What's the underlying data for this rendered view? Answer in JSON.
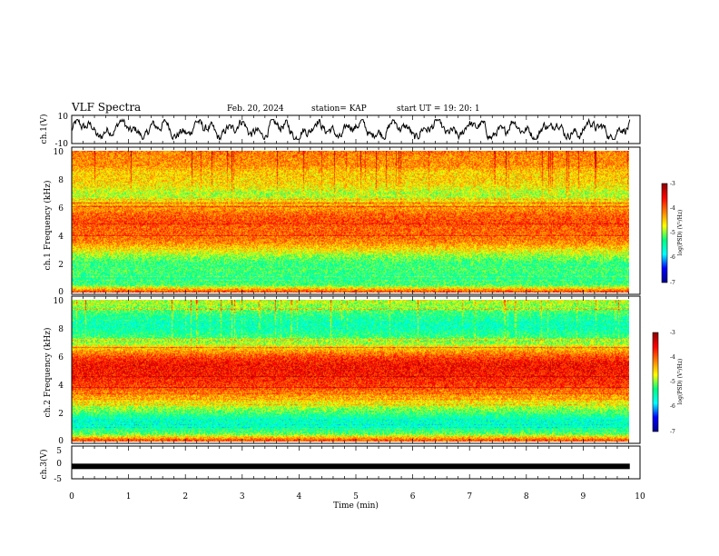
{
  "header": {
    "title": "VLF Spectra",
    "date": "Feb. 20, 2024",
    "station": "station= KAP",
    "start": "start UT =   19: 20: 1"
  },
  "colors": {
    "colormap": [
      "#00008b",
      "#0000ff",
      "#00ffff",
      "#00ff7f",
      "#ffff00",
      "#ff7f00",
      "#ff0000",
      "#8b0000"
    ],
    "trace": "#000000"
  },
  "chart_data": [
    {
      "type": "line",
      "ylabel": "ch.1(V)",
      "ylim": [
        -10,
        10
      ],
      "ytick_labels": [
        "-10",
        "10"
      ],
      "xlim": [
        0,
        10
      ],
      "x_data_extent": [
        0,
        9.82
      ],
      "description_of_series": "noisy waveform roughly between -6 and 6 V"
    },
    {
      "type": "heatmap",
      "ylabel": "ch.1 Frequency (kHz)",
      "ylim": [
        0,
        10
      ],
      "ytick_labels": [
        "0",
        "2",
        "4",
        "6",
        "8",
        "10"
      ],
      "colorbar": {
        "label": "log(PSD) (V²/Hz)",
        "range": [
          -7,
          -3
        ],
        "tick_labels": [
          "-3",
          "-4",
          "-5",
          "-6",
          "-7"
        ]
      },
      "frequency_profile": [
        [
          0.0,
          -3.8
        ],
        [
          0.3,
          -4.6
        ],
        [
          0.5,
          -5.2
        ],
        [
          1.0,
          -5.4
        ],
        [
          1.5,
          -5.2
        ],
        [
          2.0,
          -5.3
        ],
        [
          2.5,
          -5.0
        ],
        [
          3.0,
          -4.6
        ],
        [
          3.5,
          -4.2
        ],
        [
          4.0,
          -4.0
        ],
        [
          4.5,
          -4.0
        ],
        [
          5.0,
          -3.9
        ],
        [
          5.5,
          -4.0
        ],
        [
          6.0,
          -4.3
        ],
        [
          6.5,
          -4.6
        ],
        [
          7.0,
          -4.9
        ],
        [
          7.5,
          -4.6
        ],
        [
          8.0,
          -4.5
        ],
        [
          8.5,
          -4.5
        ],
        [
          9.0,
          -4.2
        ],
        [
          9.5,
          -4.2
        ],
        [
          10.0,
          -4.1
        ]
      ]
    },
    {
      "type": "heatmap",
      "ylabel": "ch.2 Frequency (kHz)",
      "ylim": [
        0,
        10
      ],
      "ytick_labels": [
        "0",
        "2",
        "4",
        "6",
        "8",
        "10"
      ],
      "colorbar": {
        "label": "log(PSD) (V²/Hz)",
        "range": [
          -7,
          -3
        ],
        "tick_labels": [
          "-3",
          "-4",
          "-5",
          "-6",
          "-7"
        ]
      },
      "frequency_profile": [
        [
          0.0,
          -3.9
        ],
        [
          0.3,
          -4.5
        ],
        [
          0.5,
          -5.1
        ],
        [
          1.0,
          -5.5
        ],
        [
          1.5,
          -5.6
        ],
        [
          2.0,
          -5.2
        ],
        [
          2.5,
          -4.8
        ],
        [
          3.0,
          -4.4
        ],
        [
          3.5,
          -4.1
        ],
        [
          4.0,
          -3.8
        ],
        [
          4.5,
          -3.7
        ],
        [
          5.0,
          -3.6
        ],
        [
          5.5,
          -3.6
        ],
        [
          6.0,
          -3.9
        ],
        [
          6.5,
          -4.4
        ],
        [
          7.0,
          -5.0
        ],
        [
          7.5,
          -5.3
        ],
        [
          8.0,
          -5.5
        ],
        [
          8.5,
          -5.5
        ],
        [
          9.0,
          -5.3
        ],
        [
          9.5,
          -5.0
        ],
        [
          10.0,
          -4.8
        ]
      ]
    },
    {
      "type": "line",
      "ylabel": "ch.3(V)",
      "ylim": [
        -5,
        5
      ],
      "ytick_labels": [
        "-5",
        "0",
        "5"
      ],
      "level": -1.2,
      "xlim": [
        0,
        10
      ],
      "x_data_extent": [
        0,
        9.82
      ]
    }
  ],
  "xaxis": {
    "label": "Time (min)",
    "range": [
      0,
      10
    ],
    "tick_labels": [
      "0",
      "1",
      "2",
      "3",
      "4",
      "5",
      "6",
      "7",
      "8",
      "9",
      "10"
    ]
  }
}
